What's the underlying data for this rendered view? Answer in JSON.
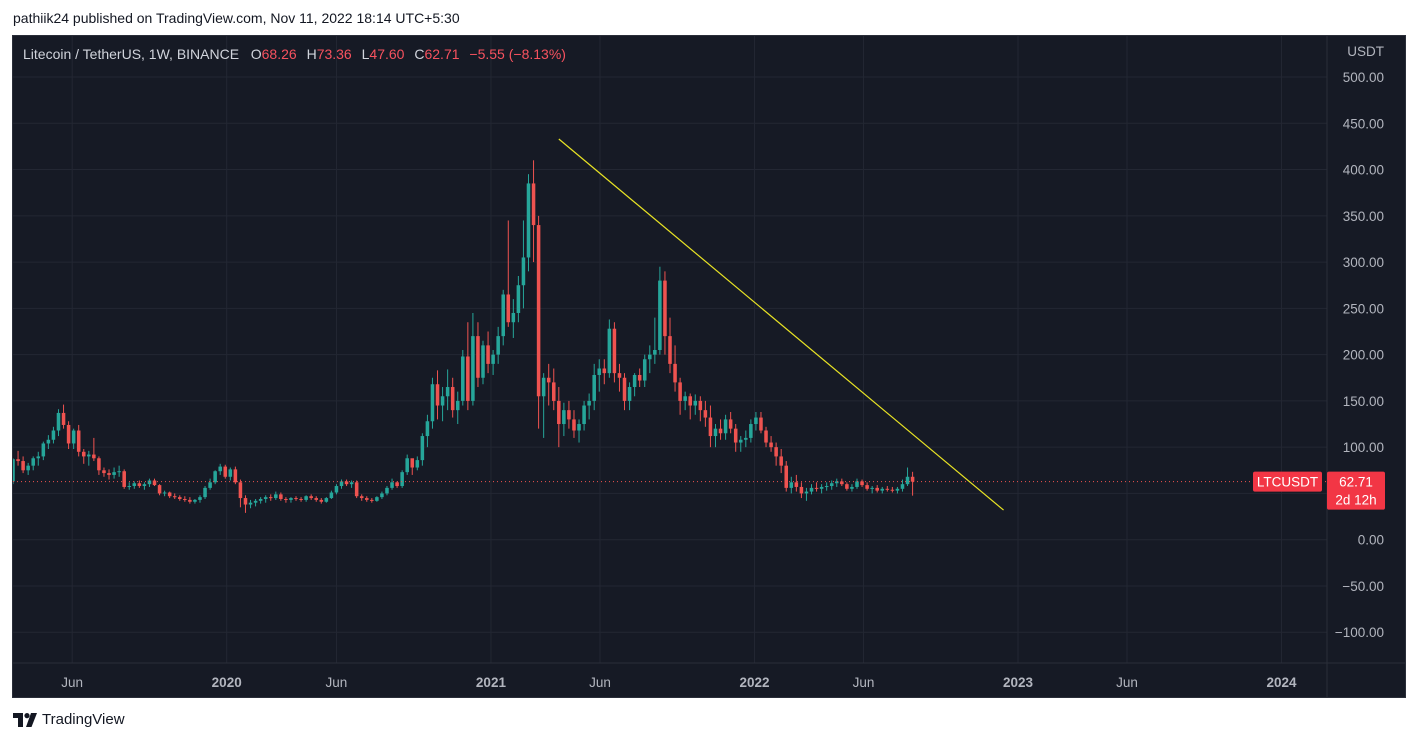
{
  "caption": "pathiik24 published on TradingView.com, Nov 11, 2022 18:14 UTC+5:30",
  "brand": "TradingView",
  "legend": {
    "symbol": "Litecoin / TetherUS, 1W, BINANCE",
    "open_label": "O",
    "open": "68.26",
    "high_label": "H",
    "high": "73.36",
    "low_label": "L",
    "low": "47.60",
    "close_label": "C",
    "close": "62.71",
    "change": "−5.55 (−8.13%)"
  },
  "colors": {
    "background": "#161a25",
    "grid": "#232733",
    "up": "#26a69a",
    "down": "#ef5350",
    "trendline": "#e8e324",
    "text": "#b2b5be",
    "price_tag": "#f23645"
  },
  "chart_data": {
    "type": "candlestick",
    "symbol": "LTCUSDT",
    "interval": "1W",
    "exchange": "BINANCE",
    "y_unit": "USDT",
    "ylim": [
      -130,
      540
    ],
    "y_ticks": [
      500,
      450,
      400,
      350,
      300,
      250,
      200,
      150,
      100,
      50,
      0,
      -50,
      -100
    ],
    "y_tick_labels": [
      "500.00",
      "450.00",
      "400.00",
      "350.00",
      "300.00",
      "250.00",
      "200.00",
      "150.00",
      "100.00",
      "50.00",
      "0.00",
      "−50.00",
      "−100.00"
    ],
    "x_range": [
      "2019-03-11",
      "2024-03-04"
    ],
    "x_tick_labels": [
      {
        "date": "2019-06-01",
        "label": "Jun",
        "bold": false
      },
      {
        "date": "2020-01-01",
        "label": "2020",
        "bold": true
      },
      {
        "date": "2020-06-01",
        "label": "Jun",
        "bold": false
      },
      {
        "date": "2021-01-01",
        "label": "2021",
        "bold": true
      },
      {
        "date": "2021-06-01",
        "label": "Jun",
        "bold": false
      },
      {
        "date": "2022-01-01",
        "label": "2022",
        "bold": true
      },
      {
        "date": "2022-06-01",
        "label": "Jun",
        "bold": false
      },
      {
        "date": "2023-01-01",
        "label": "2023",
        "bold": true
      },
      {
        "date": "2023-06-01",
        "label": "Jun",
        "bold": false
      },
      {
        "date": "2024-01-01",
        "label": "2024",
        "bold": true
      }
    ],
    "grid": true,
    "close_price_line": 62.71,
    "last_price_tag": {
      "symbol": "LTCUSDT",
      "price": "62.71",
      "countdown": "2d 12h"
    },
    "trendline": {
      "start": {
        "date": "2021-04-05",
        "price": 433
      },
      "end": {
        "date": "2022-12-12",
        "price": 32
      }
    },
    "start_date": "2019-03-11",
    "week_days": 7,
    "candles": [
      [
        63,
        88,
        60,
        87
      ],
      [
        87,
        96,
        80,
        85
      ],
      [
        85,
        90,
        72,
        75
      ],
      [
        75,
        83,
        70,
        80
      ],
      [
        80,
        90,
        75,
        88
      ],
      [
        88,
        95,
        80,
        90
      ],
      [
        90,
        106,
        86,
        104
      ],
      [
        104,
        113,
        98,
        108
      ],
      [
        108,
        122,
        104,
        118
      ],
      [
        118,
        141,
        112,
        137
      ],
      [
        137,
        146,
        120,
        124
      ],
      [
        124,
        128,
        98,
        104
      ],
      [
        104,
        120,
        98,
        118
      ],
      [
        118,
        124,
        90,
        95
      ],
      [
        95,
        98,
        82,
        90
      ],
      [
        90,
        96,
        80,
        92
      ],
      [
        92,
        110,
        85,
        88
      ],
      [
        88,
        90,
        70,
        75
      ],
      [
        75,
        78,
        68,
        72
      ],
      [
        72,
        76,
        65,
        70
      ],
      [
        70,
        78,
        66,
        73
      ],
      [
        73,
        80,
        68,
        74
      ],
      [
        74,
        76,
        55,
        57
      ],
      [
        57,
        62,
        54,
        58
      ],
      [
        58,
        63,
        55,
        61
      ],
      [
        61,
        64,
        56,
        58
      ],
      [
        58,
        62,
        54,
        60
      ],
      [
        60,
        66,
        57,
        64
      ],
      [
        64,
        66,
        58,
        59
      ],
      [
        59,
        60,
        48,
        50
      ],
      [
        50,
        53,
        47,
        51
      ],
      [
        51,
        52,
        45,
        47
      ],
      [
        47,
        50,
        44,
        46
      ],
      [
        46,
        48,
        42,
        44
      ],
      [
        44,
        47,
        41,
        43
      ],
      [
        43,
        46,
        39,
        41
      ],
      [
        41,
        44,
        39,
        43
      ],
      [
        43,
        48,
        40,
        46
      ],
      [
        46,
        58,
        44,
        56
      ],
      [
        56,
        66,
        54,
        62
      ],
      [
        62,
        75,
        60,
        74
      ],
      [
        74,
        82,
        70,
        79
      ],
      [
        79,
        81,
        66,
        68
      ],
      [
        68,
        78,
        64,
        76
      ],
      [
        76,
        79,
        60,
        62
      ],
      [
        62,
        65,
        35,
        45
      ],
      [
        45,
        48,
        29,
        38
      ],
      [
        38,
        43,
        34,
        40
      ],
      [
        40,
        44,
        36,
        42
      ],
      [
        42,
        46,
        39,
        44
      ],
      [
        44,
        48,
        40,
        46
      ],
      [
        46,
        49,
        42,
        45
      ],
      [
        45,
        52,
        43,
        49
      ],
      [
        49,
        51,
        42,
        44
      ],
      [
        44,
        46,
        40,
        43
      ],
      [
        43,
        46,
        40,
        45
      ],
      [
        45,
        47,
        42,
        44
      ],
      [
        44,
        46,
        41,
        43
      ],
      [
        43,
        48,
        41,
        47
      ],
      [
        47,
        49,
        43,
        45
      ],
      [
        45,
        47,
        41,
        43
      ],
      [
        43,
        45,
        39,
        41
      ],
      [
        41,
        46,
        40,
        45
      ],
      [
        45,
        53,
        44,
        51
      ],
      [
        51,
        60,
        49,
        58
      ],
      [
        58,
        65,
        55,
        63
      ],
      [
        63,
        65,
        58,
        60
      ],
      [
        60,
        64,
        56,
        62
      ],
      [
        62,
        64,
        45,
        47
      ],
      [
        47,
        49,
        42,
        45
      ],
      [
        45,
        47,
        41,
        43
      ],
      [
        43,
        45,
        40,
        42
      ],
      [
        42,
        47,
        41,
        46
      ],
      [
        46,
        52,
        44,
        50
      ],
      [
        50,
        58,
        48,
        56
      ],
      [
        56,
        66,
        54,
        62
      ],
      [
        62,
        63,
        56,
        58
      ],
      [
        58,
        75,
        56,
        73
      ],
      [
        73,
        92,
        70,
        88
      ],
      [
        88,
        86,
        70,
        78
      ],
      [
        78,
        90,
        75,
        86
      ],
      [
        86,
        115,
        80,
        112
      ],
      [
        112,
        135,
        100,
        128
      ],
      [
        128,
        175,
        120,
        168
      ],
      [
        168,
        183,
        130,
        145
      ],
      [
        145,
        165,
        128,
        155
      ],
      [
        155,
        184,
        140,
        165
      ],
      [
        165,
        175,
        132,
        140
      ],
      [
        140,
        160,
        125,
        150
      ],
      [
        150,
        205,
        145,
        198
      ],
      [
        198,
        235,
        140,
        150
      ],
      [
        150,
        245,
        145,
        220
      ],
      [
        220,
        235,
        165,
        175
      ],
      [
        175,
        215,
        168,
        210
      ],
      [
        210,
        225,
        180,
        190
      ],
      [
        190,
        205,
        178,
        200
      ],
      [
        200,
        230,
        190,
        220
      ],
      [
        220,
        270,
        210,
        265
      ],
      [
        265,
        345,
        230,
        235
      ],
      [
        235,
        260,
        218,
        245
      ],
      [
        245,
        285,
        235,
        275
      ],
      [
        275,
        345,
        250,
        305
      ],
      [
        305,
        395,
        290,
        385
      ],
      [
        385,
        410,
        300,
        340
      ],
      [
        340,
        350,
        120,
        155
      ],
      [
        155,
        180,
        110,
        175
      ],
      [
        175,
        190,
        145,
        170
      ],
      [
        170,
        185,
        140,
        150
      ],
      [
        150,
        165,
        100,
        125
      ],
      [
        125,
        148,
        112,
        140
      ],
      [
        140,
        150,
        120,
        130
      ],
      [
        130,
        140,
        110,
        118
      ],
      [
        118,
        130,
        105,
        125
      ],
      [
        125,
        150,
        118,
        145
      ],
      [
        145,
        158,
        130,
        150
      ],
      [
        150,
        190,
        140,
        178
      ],
      [
        178,
        195,
        160,
        185
      ],
      [
        185,
        195,
        168,
        180
      ],
      [
        180,
        238,
        175,
        228
      ],
      [
        228,
        235,
        170,
        180
      ],
      [
        180,
        190,
        160,
        175
      ],
      [
        175,
        180,
        140,
        150
      ],
      [
        150,
        170,
        140,
        165
      ],
      [
        165,
        180,
        155,
        178
      ],
      [
        178,
        185,
        165,
        172
      ],
      [
        172,
        200,
        165,
        195
      ],
      [
        195,
        210,
        180,
        200
      ],
      [
        200,
        240,
        190,
        205
      ],
      [
        205,
        295,
        200,
        280
      ],
      [
        280,
        290,
        200,
        220
      ],
      [
        220,
        240,
        180,
        190
      ],
      [
        190,
        210,
        160,
        170
      ],
      [
        170,
        175,
        135,
        150
      ],
      [
        150,
        160,
        140,
        155
      ],
      [
        155,
        158,
        130,
        145
      ],
      [
        145,
        157,
        135,
        150
      ],
      [
        150,
        155,
        128,
        140
      ],
      [
        140,
        150,
        122,
        132
      ],
      [
        132,
        145,
        100,
        112
      ],
      [
        112,
        125,
        100,
        120
      ],
      [
        120,
        130,
        108,
        115
      ],
      [
        115,
        135,
        108,
        130
      ],
      [
        130,
        138,
        115,
        120
      ],
      [
        120,
        125,
        95,
        105
      ],
      [
        105,
        112,
        95,
        108
      ],
      [
        108,
        118,
        100,
        110
      ],
      [
        110,
        130,
        105,
        125
      ],
      [
        125,
        138,
        118,
        132
      ],
      [
        132,
        138,
        115,
        118
      ],
      [
        118,
        122,
        100,
        105
      ],
      [
        105,
        112,
        95,
        100
      ],
      [
        100,
        105,
        80,
        90
      ],
      [
        90,
        98,
        72,
        80
      ],
      [
        80,
        85,
        52,
        56
      ],
      [
        56,
        68,
        50,
        62
      ],
      [
        62,
        70,
        52,
        57
      ],
      [
        57,
        62,
        45,
        50
      ],
      [
        50,
        56,
        42,
        52
      ],
      [
        52,
        60,
        49,
        56
      ],
      [
        56,
        62,
        52,
        55
      ],
      [
        55,
        60,
        50,
        57
      ],
      [
        57,
        62,
        53,
        58
      ],
      [
        58,
        64,
        54,
        61
      ],
      [
        61,
        66,
        57,
        63
      ],
      [
        63,
        66,
        58,
        60
      ],
      [
        60,
        62,
        53,
        55
      ],
      [
        55,
        60,
        52,
        57
      ],
      [
        57,
        66,
        55,
        63
      ],
      [
        63,
        65,
        57,
        59
      ],
      [
        59,
        62,
        53,
        55
      ],
      [
        55,
        58,
        50,
        56
      ],
      [
        56,
        59,
        51,
        53
      ],
      [
        53,
        57,
        50,
        55
      ],
      [
        55,
        58,
        52,
        54
      ],
      [
        54,
        57,
        51,
        53
      ],
      [
        53,
        57,
        50,
        55
      ],
      [
        55,
        65,
        52,
        60
      ],
      [
        60,
        78,
        58,
        68
      ],
      [
        68,
        73.36,
        47.6,
        62.71
      ]
    ]
  }
}
